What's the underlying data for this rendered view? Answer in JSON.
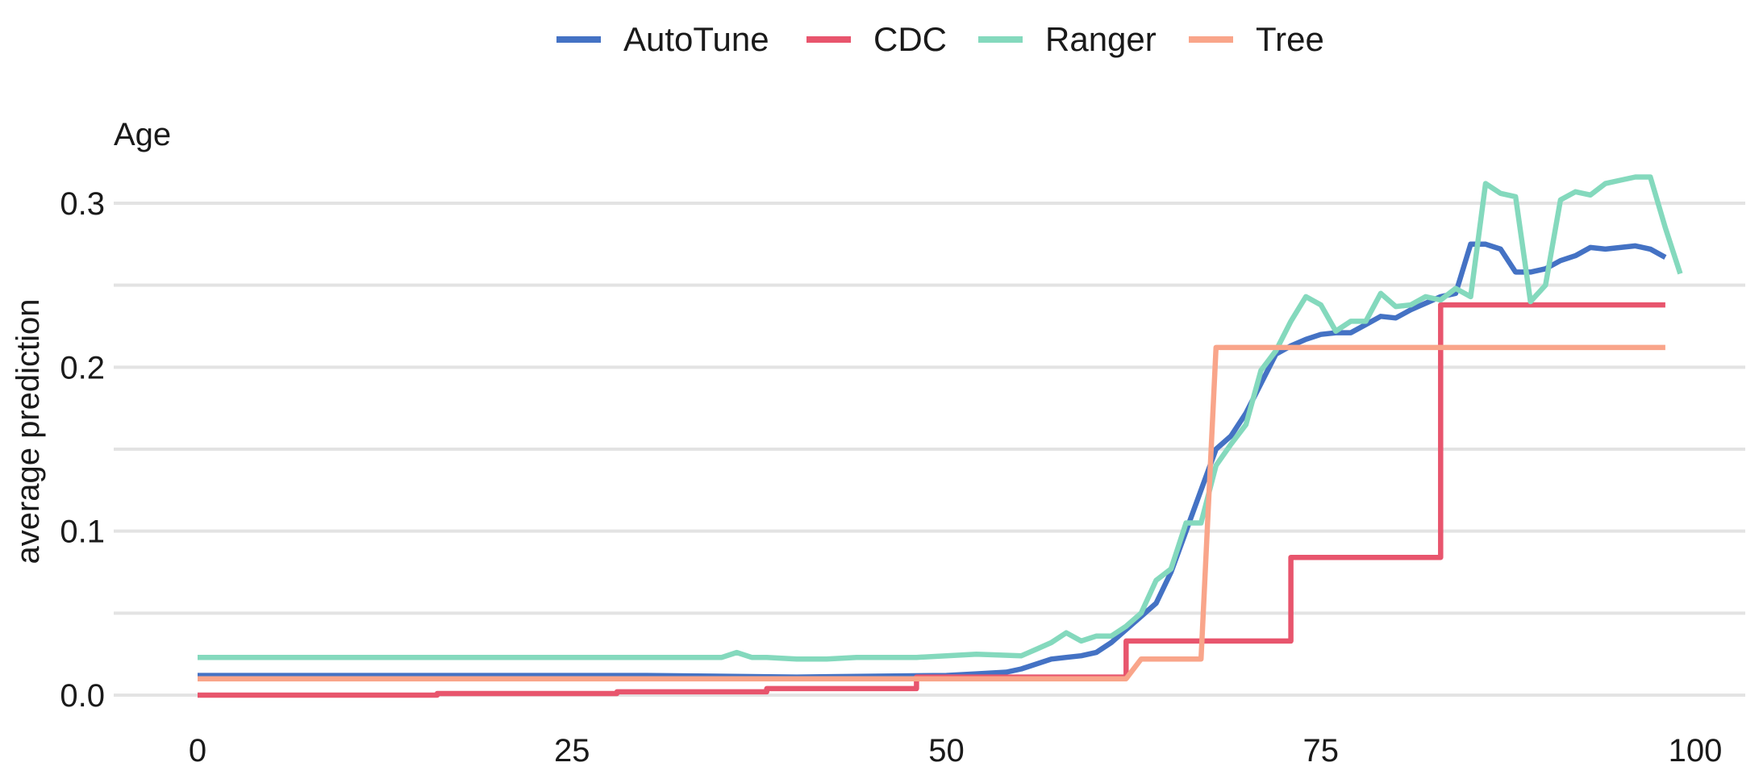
{
  "chart_data": {
    "type": "line",
    "title": "Age",
    "xlabel": "",
    "ylabel": "average prediction",
    "xlim": [
      -2,
      100
    ],
    "ylim": [
      -0.005,
      0.31
    ],
    "x_ticks": [
      0,
      25,
      50,
      75,
      100
    ],
    "y_ticks": [
      0.0,
      0.1,
      0.2,
      0.3
    ],
    "y_tick_labels": [
      "0.0",
      "0.1",
      "0.2",
      "0.3"
    ],
    "y_minor_gridlines": [
      0.05,
      0.15,
      0.25
    ],
    "grid": "horizontal",
    "legend_position": "top",
    "series": [
      {
        "name": "AutoTune",
        "color": "#4472C4",
        "points": [
          [
            0,
            0.012
          ],
          [
            10,
            0.012
          ],
          [
            20,
            0.012
          ],
          [
            30,
            0.012
          ],
          [
            40,
            0.011
          ],
          [
            50,
            0.012
          ],
          [
            52,
            0.013
          ],
          [
            54,
            0.014
          ],
          [
            55,
            0.016
          ],
          [
            56,
            0.019
          ],
          [
            57,
            0.022
          ],
          [
            58,
            0.023
          ],
          [
            59,
            0.024
          ],
          [
            60,
            0.026
          ],
          [
            61,
            0.032
          ],
          [
            62,
            0.04
          ],
          [
            63,
            0.048
          ],
          [
            64,
            0.056
          ],
          [
            65,
            0.075
          ],
          [
            66,
            0.1
          ],
          [
            67,
            0.125
          ],
          [
            68,
            0.15
          ],
          [
            69,
            0.158
          ],
          [
            70,
            0.172
          ],
          [
            71,
            0.19
          ],
          [
            72,
            0.208
          ],
          [
            73,
            0.213
          ],
          [
            74,
            0.217
          ],
          [
            75,
            0.22
          ],
          [
            76,
            0.221
          ],
          [
            77,
            0.221
          ],
          [
            78,
            0.226
          ],
          [
            79,
            0.231
          ],
          [
            80,
            0.23
          ],
          [
            81,
            0.235
          ],
          [
            82,
            0.239
          ],
          [
            83,
            0.243
          ],
          [
            84,
            0.245
          ],
          [
            85,
            0.275
          ],
          [
            86,
            0.275
          ],
          [
            87,
            0.272
          ],
          [
            88,
            0.258
          ],
          [
            89,
            0.258
          ],
          [
            90,
            0.26
          ],
          [
            91,
            0.265
          ],
          [
            92,
            0.268
          ],
          [
            93,
            0.273
          ],
          [
            94,
            0.272
          ],
          [
            95,
            0.273
          ],
          [
            96,
            0.274
          ],
          [
            97,
            0.272
          ],
          [
            98,
            0.267
          ]
        ]
      },
      {
        "name": "CDC",
        "color": "#E8556D",
        "points": [
          [
            0,
            0.0
          ],
          [
            16,
            0.0
          ],
          [
            16,
            0.001
          ],
          [
            28,
            0.001
          ],
          [
            28,
            0.002
          ],
          [
            38,
            0.002
          ],
          [
            38,
            0.004
          ],
          [
            48,
            0.004
          ],
          [
            48,
            0.011
          ],
          [
            62,
            0.011
          ],
          [
            62,
            0.033
          ],
          [
            73,
            0.033
          ],
          [
            73,
            0.084
          ],
          [
            83,
            0.084
          ],
          [
            83,
            0.238
          ],
          [
            98,
            0.238
          ]
        ]
      },
      {
        "name": "Ranger",
        "color": "#84D9BD",
        "points": [
          [
            0,
            0.023
          ],
          [
            10,
            0.023
          ],
          [
            20,
            0.023
          ],
          [
            30,
            0.023
          ],
          [
            34,
            0.023
          ],
          [
            35,
            0.023
          ],
          [
            36,
            0.026
          ],
          [
            37,
            0.023
          ],
          [
            38,
            0.023
          ],
          [
            40,
            0.022
          ],
          [
            42,
            0.022
          ],
          [
            44,
            0.023
          ],
          [
            48,
            0.023
          ],
          [
            50,
            0.024
          ],
          [
            52,
            0.025
          ],
          [
            55,
            0.024
          ],
          [
            56,
            0.028
          ],
          [
            57,
            0.032
          ],
          [
            58,
            0.038
          ],
          [
            59,
            0.033
          ],
          [
            60,
            0.036
          ],
          [
            61,
            0.036
          ],
          [
            62,
            0.042
          ],
          [
            63,
            0.05
          ],
          [
            64,
            0.07
          ],
          [
            65,
            0.077
          ],
          [
            66,
            0.105
          ],
          [
            67,
            0.105
          ],
          [
            68,
            0.14
          ],
          [
            69,
            0.153
          ],
          [
            70,
            0.165
          ],
          [
            71,
            0.198
          ],
          [
            72,
            0.21
          ],
          [
            73,
            0.228
          ],
          [
            74,
            0.243
          ],
          [
            75,
            0.238
          ],
          [
            76,
            0.222
          ],
          [
            77,
            0.228
          ],
          [
            78,
            0.228
          ],
          [
            79,
            0.245
          ],
          [
            80,
            0.237
          ],
          [
            81,
            0.238
          ],
          [
            82,
            0.243
          ],
          [
            83,
            0.241
          ],
          [
            84,
            0.248
          ],
          [
            85,
            0.243
          ],
          [
            86,
            0.312
          ],
          [
            87,
            0.306
          ],
          [
            88,
            0.304
          ],
          [
            89,
            0.24
          ],
          [
            90,
            0.25
          ],
          [
            91,
            0.302
          ],
          [
            92,
            0.307
          ],
          [
            93,
            0.305
          ],
          [
            94,
            0.312
          ],
          [
            95,
            0.314
          ],
          [
            96,
            0.316
          ],
          [
            97,
            0.316
          ],
          [
            98,
            0.285
          ],
          [
            99,
            0.257
          ]
        ]
      },
      {
        "name": "Tree",
        "color": "#F9A58A",
        "points": [
          [
            0,
            0.01
          ],
          [
            62,
            0.01
          ],
          [
            63,
            0.022
          ],
          [
            67,
            0.022
          ],
          [
            68,
            0.212
          ],
          [
            98,
            0.212
          ]
        ]
      }
    ]
  }
}
